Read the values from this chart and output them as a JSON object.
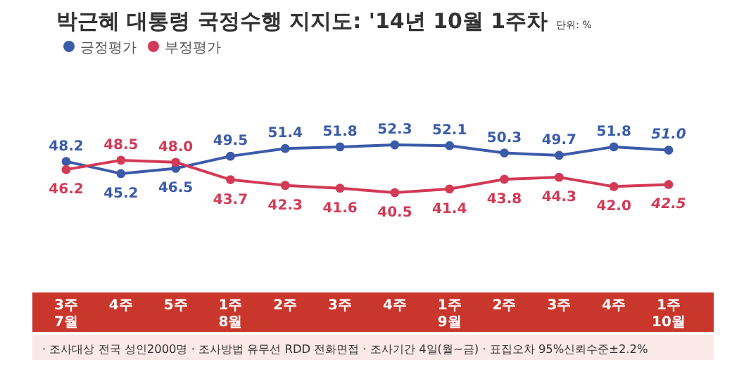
{
  "chart_data": {
    "type": "line",
    "title": "박근혜 대통령 국정수행 지지도: '14년 10월 1주차",
    "subtitle": "단위: %",
    "categories": [
      "3주\n7월",
      "4주",
      "5주",
      "1주\n8월",
      "2주",
      "3주",
      "4주",
      "1주\n9월",
      "2주",
      "3주",
      "4주",
      "1주\n10월"
    ],
    "series": [
      {
        "name": "긍정평가",
        "color": "#3b5ba9",
        "values": [
          48.2,
          45.2,
          46.5,
          49.5,
          51.4,
          51.8,
          52.3,
          52.1,
          50.3,
          49.7,
          51.8,
          51.0
        ],
        "value_labels": [
          "48.2",
          "45.2",
          "46.5",
          "49.5",
          "51.4",
          "51.8",
          "52.3",
          "52.1",
          "50.3",
          "49.7",
          "51.8",
          "51.0"
        ]
      },
      {
        "name": "부정평가",
        "color": "#d23a55",
        "values": [
          46.2,
          48.5,
          48.0,
          43.7,
          42.3,
          41.6,
          40.5,
          41.4,
          43.8,
          44.3,
          42.0,
          42.5
        ],
        "value_labels": [
          "46.2",
          "48.5",
          "48.0",
          "43.7",
          "42.3",
          "41.6",
          "40.5",
          "41.4",
          "43.8",
          "44.3",
          "42.0",
          "42.5"
        ]
      }
    ],
    "legend": "top left",
    "marker": "circle",
    "line_style": "solid",
    "annotations": [
      "· 조사대상 전국 성인2000명 · 조사방법 유무선 RDD 전화면접 · 조사기간 4일(월~금) · 표집오차 95%신뢰수준±2.2%"
    ]
  }
}
